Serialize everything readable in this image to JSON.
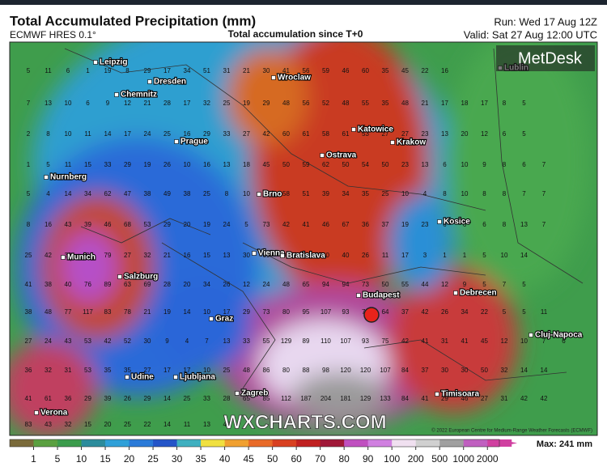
{
  "header": {
    "title": "Total Accumulated Precipitation (mm)",
    "model": "ECMWF HRES 0.1°",
    "subtitle": "Total accumulation since T+0",
    "run": "Run: Wed 17 Aug 12Z",
    "valid": "Valid: Sat 27 Aug 12:00 UTC"
  },
  "logo": "MetDesk",
  "watermark": "WXCHARTS.COM",
  "copyright": "© 2022 European Centre for Medium-Range Weather Forecasts (ECMWF)",
  "cities": [
    "Leipzig",
    "Dresden",
    "Chemnitz",
    "Wroclaw",
    "Lublin",
    "Katowice",
    "Krakow",
    "Prague",
    "Ostrava",
    "Nurnberg",
    "Brno",
    "Kosice",
    "Munich",
    "Vienna",
    "Bratislava",
    "Salzburg",
    "Budapest",
    "Debrecen",
    "Graz",
    "Cluj-Napoca",
    "Udine",
    "Ljubljana",
    "Zagreb",
    "Timisoara",
    "Verona"
  ],
  "grid_values": [
    [
      5,
      11,
      6,
      1,
      19,
      8,
      29,
      17,
      34,
      51,
      31,
      21,
      30,
      41,
      56,
      59,
      46,
      60,
      35,
      45,
      22,
      16
    ],
    [
      7,
      13,
      10,
      6,
      9,
      12,
      21,
      28,
      17,
      32,
      25,
      19,
      29,
      48,
      56,
      52,
      48,
      55,
      35,
      48,
      21,
      17,
      18,
      17,
      8,
      5
    ],
    [
      2,
      8,
      10,
      11,
      14,
      17,
      24,
      25,
      16,
      29,
      33,
      27,
      42,
      60,
      61,
      58,
      61,
      53,
      27,
      27,
      23,
      13,
      20,
      12,
      6,
      5
    ],
    [
      1,
      5,
      11,
      15,
      33,
      29,
      19,
      26,
      10,
      16,
      13,
      18,
      45,
      50,
      59,
      62,
      50,
      54,
      50,
      23,
      13,
      6,
      10,
      9,
      8,
      6,
      7
    ],
    [
      5,
      4,
      14,
      34,
      62,
      47,
      38,
      49,
      38,
      25,
      8,
      10,
      63,
      58,
      51,
      39,
      34,
      35,
      25,
      10,
      4,
      8,
      10,
      8,
      8,
      7,
      7
    ],
    [
      8,
      16,
      43,
      39,
      46,
      68,
      53,
      29,
      20,
      19,
      24,
      5,
      73,
      42,
      41,
      46,
      67,
      36,
      37,
      19,
      23,
      6,
      6,
      6,
      8,
      13,
      7
    ],
    [
      25,
      42,
      39,
      102,
      79,
      27,
      32,
      21,
      16,
      15,
      13,
      30,
      69,
      39,
      81,
      60,
      40,
      26,
      11,
      17,
      3,
      1,
      1,
      5,
      10,
      14
    ],
    [
      41,
      38,
      40,
      76,
      89,
      63,
      69,
      28,
      20,
      34,
      26,
      12,
      24,
      48,
      65,
      94,
      94,
      73,
      50,
      55,
      44,
      12,
      9,
      5,
      7,
      5
    ],
    [
      38,
      48,
      77,
      117,
      83,
      78,
      21,
      19,
      14,
      10,
      17,
      29,
      73,
      80,
      95,
      107,
      93,
      79,
      64,
      37,
      42,
      26,
      34,
      22,
      5,
      5,
      11
    ],
    [
      27,
      24,
      43,
      53,
      42,
      52,
      30,
      9,
      4,
      7,
      13,
      33,
      55,
      129,
      89,
      110,
      107,
      93,
      75,
      42,
      41,
      31,
      41,
      45,
      12,
      10,
      7,
      6
    ],
    [
      36,
      32,
      31,
      53,
      35,
      35,
      27,
      17,
      17,
      10,
      25,
      48,
      86,
      80,
      88,
      98,
      120,
      120,
      107,
      84,
      37,
      30,
      30,
      50,
      32,
      14,
      14
    ],
    [
      41,
      61,
      36,
      29,
      39,
      26,
      29,
      14,
      25,
      33,
      28,
      65,
      85,
      112,
      187,
      204,
      181,
      129,
      133,
      84,
      41,
      29,
      46,
      27,
      31,
      42,
      42
    ],
    [
      83,
      43,
      32,
      15,
      20,
      25,
      22,
      14,
      11,
      13,
      46
    ]
  ],
  "legend": {
    "ticks": [
      1,
      5,
      10,
      15,
      20,
      25,
      30,
      35,
      40,
      45,
      50,
      60,
      70,
      80,
      90,
      100,
      200,
      500,
      1000,
      2000
    ],
    "max": "Max: 241 mm"
  }
}
